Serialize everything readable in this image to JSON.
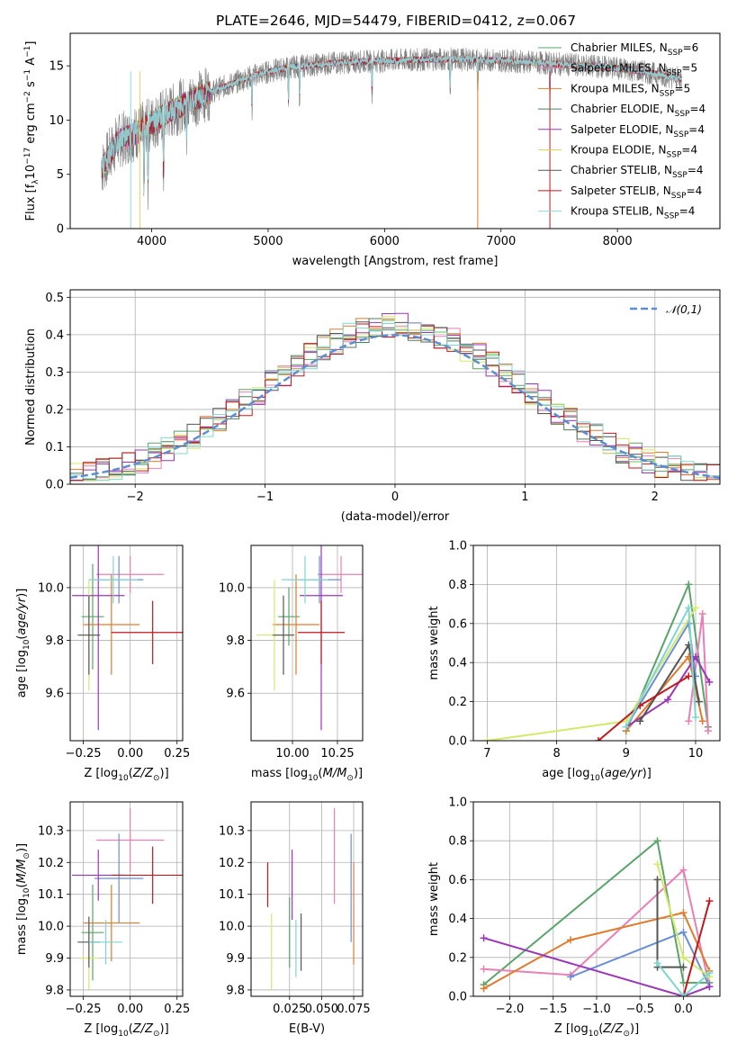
{
  "figure": {
    "title": "PLATE=2646, MJD=54479, FIBERID=0412, z=0.067"
  },
  "colors": {
    "data": "#808080",
    "models": [
      "#5aa469",
      "#e87fb5",
      "#e07b2c",
      "#4f7d5c",
      "#9b36b7",
      "#e8d35a",
      "#555555",
      "#c0191f",
      "#8fd9d9"
    ],
    "panel_models": [
      "#5aa469",
      "#e87fb5",
      "#e07b2c",
      "#6a8fd6",
      "#9b36b7",
      "#d4e86a",
      "#555555",
      "#c0191f",
      "#7fd6d0"
    ],
    "gauss": "#5b8fd4"
  },
  "chart_data": [
    {
      "id": "spectrum",
      "type": "line",
      "title": "PLATE=2646, MJD=54479, FIBERID=0412, z=0.067",
      "xlabel": "wavelength [Angstrom, rest frame]",
      "ylabel": "Flux [fλ10⁻¹⁷ erg cm⁻² s⁻¹ A⁻¹]",
      "xlim": [
        3300,
        8880
      ],
      "ylim": [
        0,
        18
      ],
      "xticks": [
        4000,
        5000,
        6000,
        7000,
        8000
      ],
      "yticks": [
        0,
        5,
        10,
        15
      ],
      "continuum": {
        "x": [
          3570,
          3700,
          3900,
          4100,
          4300,
          4600,
          4900,
          5200,
          5500,
          5800,
          6100,
          6400,
          6700,
          7000,
          7300,
          7600,
          7900,
          8200,
          8550
        ],
        "y": [
          5.5,
          8.0,
          9.0,
          10.4,
          11.6,
          13.0,
          14.2,
          14.9,
          15.2,
          15.4,
          15.5,
          15.6,
          15.6,
          15.5,
          15.3,
          15.1,
          14.9,
          14.5,
          13.8
        ]
      },
      "absorption_lines": [
        3934,
        3968,
        4102,
        4300,
        4861,
        5175,
        5270,
        5893,
        6563,
        6800,
        7420
      ],
      "legend": {
        "placement": "top-right",
        "entries": [
          "Chabrier MILES, N_SSP=6",
          "Salpeter MILES, N_SSP=5",
          "Kroupa MILES, N_SSP=5",
          "Chabrier ELODIE, N_SSP=4",
          "Salpeter ELODIE, N_SSP=4",
          "Kroupa ELODIE, N_SSP=4",
          "Chabrier STELIB, N_SSP=4",
          "Salpeter STELIB, N_SSP=4",
          "Kroupa STELIB, N_SSP=4"
        ]
      }
    },
    {
      "id": "residuals",
      "type": "histogram",
      "xlabel": "(data-model)/error",
      "ylabel": "Normed distribution",
      "xlim": [
        -2.5,
        2.5
      ],
      "ylim": [
        0,
        0.52
      ],
      "xticks": [
        -2,
        -1,
        0,
        1,
        2
      ],
      "yticks": [
        0.0,
        0.1,
        0.2,
        0.3,
        0.4,
        0.5
      ],
      "bin_width": 0.1,
      "legend": "𝒩(0,1)",
      "legend_placement": "top-right"
    },
    {
      "id": "age-vs-Z",
      "type": "errorbar",
      "xlabel": "Z [log10(Z/Z⊙)]",
      "ylabel": "age  [log10(age/yr)]",
      "xlim": [
        -0.32,
        0.28
      ],
      "ylim": [
        9.42,
        10.16
      ],
      "xticks": [
        -0.25,
        0.0,
        0.25
      ],
      "yticks": [
        9.6,
        9.8,
        10.0
      ],
      "points": [
        {
          "x": -0.2,
          "xerr": 0.06,
          "y": 9.89,
          "yerr": 0.2
        },
        {
          "x": 0.0,
          "xerr": 0.18,
          "y": 10.05,
          "yerr": 0.07
        },
        {
          "x": -0.1,
          "xerr": 0.15,
          "y": 9.86,
          "yerr": 0.19
        },
        {
          "x": -0.06,
          "xerr": 0.13,
          "y": 10.03,
          "yerr": 0.09
        },
        {
          "x": -0.17,
          "xerr": 0.14,
          "y": 9.97,
          "yerr": 0.51
        },
        {
          "x": -0.22,
          "xerr": 0.05,
          "y": 9.82,
          "yerr": 0.21
        },
        {
          "x": -0.22,
          "xerr": 0.06,
          "y": 9.82,
          "yerr": 0.15
        },
        {
          "x": 0.12,
          "xerr": 0.22,
          "y": 9.83,
          "yerr": 0.12
        },
        {
          "x": -0.09,
          "xerr": 0.13,
          "y": 10.03,
          "yerr": 0.09
        }
      ]
    },
    {
      "id": "age-vs-mass",
      "type": "errorbar",
      "xlabel": "mass [log10(M/M⊙)]",
      "ylabel": "",
      "xlim": [
        9.77,
        10.39
      ],
      "ylim": [
        9.42,
        10.16
      ],
      "xticks": [
        10.0,
        10.25
      ],
      "yticks": [
        9.6,
        9.8,
        10.0
      ],
      "points": [
        {
          "x": 9.98,
          "xerr": 0.06,
          "y": 9.89,
          "yerr": 0.11
        },
        {
          "x": 10.27,
          "xerr": 0.13,
          "y": 10.05,
          "yerr": 0.07
        },
        {
          "x": 10.02,
          "xerr": 0.13,
          "y": 9.86,
          "yerr": 0.19
        },
        {
          "x": 10.15,
          "xerr": 0.12,
          "y": 10.03,
          "yerr": 0.09
        },
        {
          "x": 10.16,
          "xerr": 0.12,
          "y": 9.97,
          "yerr": 0.51
        },
        {
          "x": 9.9,
          "xerr": 0.1,
          "y": 9.82,
          "yerr": 0.21
        },
        {
          "x": 9.95,
          "xerr": 0.06,
          "y": 9.82,
          "yerr": 0.15
        },
        {
          "x": 10.16,
          "xerr": 0.13,
          "y": 9.83,
          "yerr": 0.12
        },
        {
          "x": 10.07,
          "xerr": 0.13,
          "y": 10.03,
          "yerr": 0.09
        }
      ]
    },
    {
      "id": "weight-vs-age",
      "type": "line",
      "xlabel": "age  [log10(age/yr)]",
      "ylabel": "mass weight",
      "xlim": [
        6.8,
        10.35
      ],
      "ylim": [
        0.0,
        1.0
      ],
      "xticks": [
        7,
        8,
        9,
        10
      ],
      "yticks": [
        0.0,
        0.2,
        0.4,
        0.6,
        0.8,
        1.0
      ],
      "series": [
        {
          "x": [
            9.0,
            9.9,
            10.18
          ],
          "y": [
            0.05,
            0.8,
            0.07
          ]
        },
        {
          "x": [
            9.9,
            10.1,
            10.18
          ],
          "y": [
            0.1,
            0.65,
            0.05
          ]
        },
        {
          "x": [
            9.0,
            9.9,
            10.1
          ],
          "y": [
            0.05,
            0.43,
            0.1
          ]
        },
        {
          "x": [
            9.0,
            9.9,
            10.0
          ],
          "y": [
            0.07,
            0.6,
            0.33
          ]
        },
        {
          "x": [
            9.0,
            9.6,
            10.0,
            10.2
          ],
          "y": [
            0.07,
            0.21,
            0.43,
            0.3
          ]
        },
        {
          "x": [
            7.0,
            9.0,
            10.0
          ],
          "y": [
            0.0,
            0.1,
            0.68
          ]
        },
        {
          "x": [
            9.2,
            9.9,
            10.05
          ],
          "y": [
            0.1,
            0.49,
            0.2
          ]
        },
        {
          "x": [
            8.6,
            9.2,
            9.9
          ],
          "y": [
            0.0,
            0.18,
            0.33
          ]
        },
        {
          "x": [
            9.0,
            9.9,
            10.0
          ],
          "y": [
            0.07,
            0.68,
            0.12
          ]
        }
      ]
    },
    {
      "id": "mass-vs-Z",
      "type": "errorbar",
      "xlabel": "Z [log10(Z/Z⊙)]",
      "ylabel": "mass [log10(M/M⊙)]",
      "xlim": [
        -0.32,
        0.28
      ],
      "ylim": [
        9.78,
        10.39
      ],
      "xticks": [
        -0.25,
        0.0,
        0.25
      ],
      "yticks": [
        9.8,
        9.9,
        10.0,
        10.1,
        10.2,
        10.3
      ],
      "points": [
        {
          "x": -0.2,
          "xerr": 0.06,
          "y": 9.98,
          "yerr": 0.15
        },
        {
          "x": 0.0,
          "xerr": 0.18,
          "y": 10.27,
          "yerr": 0.1
        },
        {
          "x": -0.1,
          "xerr": 0.15,
          "y": 10.01,
          "yerr": 0.12
        },
        {
          "x": -0.06,
          "xerr": 0.13,
          "y": 10.15,
          "yerr": 0.14
        },
        {
          "x": -0.17,
          "xerr": 0.14,
          "y": 10.16,
          "yerr": 0.08
        },
        {
          "x": -0.22,
          "xerr": 0.05,
          "y": 9.9,
          "yerr": 0.1
        },
        {
          "x": -0.22,
          "xerr": 0.06,
          "y": 9.95,
          "yerr": 0.08
        },
        {
          "x": 0.12,
          "xerr": 0.22,
          "y": 10.16,
          "yerr": 0.09
        },
        {
          "x": -0.13,
          "xerr": 0.09,
          "y": 9.95,
          "yerr": 0.07
        }
      ]
    },
    {
      "id": "mass-vs-ebv",
      "type": "errorbar",
      "xlabel": "E(B-V)",
      "ylabel": "",
      "xlim": [
        -0.005,
        0.082
      ],
      "ylim": [
        9.78,
        10.39
      ],
      "xticks": [
        0.025,
        0.05,
        0.075
      ],
      "yticks": [
        9.8,
        9.9,
        10.0,
        10.1,
        10.2,
        10.3
      ],
      "points": [
        {
          "x": 0.025,
          "y": 9.98,
          "yerr": 0.11
        },
        {
          "x": 0.06,
          "y": 10.22,
          "yerr": 0.15
        },
        {
          "x": 0.075,
          "y": 10.04,
          "yerr": 0.16
        },
        {
          "x": 0.073,
          "y": 10.12,
          "yerr": 0.17
        },
        {
          "x": 0.027,
          "y": 10.13,
          "yerr": 0.11
        },
        {
          "x": 0.011,
          "y": 9.92,
          "yerr": 0.12
        },
        {
          "x": 0.034,
          "y": 9.95,
          "yerr": 0.09
        },
        {
          "x": 0.008,
          "y": 10.13,
          "yerr": 0.07
        },
        {
          "x": 0.03,
          "y": 9.93,
          "yerr": 0.09
        }
      ]
    },
    {
      "id": "weight-vs-Z",
      "type": "line",
      "xlabel": "Z [log10(Z/Z⊙)]",
      "ylabel": "mass weight",
      "xlim": [
        -2.42,
        0.42
      ],
      "ylim": [
        0.0,
        1.0
      ],
      "xticks": [
        -2.0,
        -1.5,
        -1.0,
        -0.5,
        0.0
      ],
      "yticks": [
        0.0,
        0.2,
        0.4,
        0.6,
        0.8,
        1.0
      ],
      "series": [
        {
          "x": [
            -2.3,
            -0.3,
            0.0,
            0.3
          ],
          "y": [
            0.06,
            0.8,
            0.07,
            0.07
          ]
        },
        {
          "x": [
            -2.3,
            -1.3,
            0.0,
            0.3
          ],
          "y": [
            0.14,
            0.11,
            0.65,
            0.05
          ]
        },
        {
          "x": [
            -2.3,
            -1.3,
            0.0,
            0.3
          ],
          "y": [
            0.04,
            0.29,
            0.43,
            0.13
          ]
        },
        {
          "x": [
            -1.3,
            0.0,
            0.3
          ],
          "y": [
            0.1,
            0.33,
            0.05
          ]
        },
        {
          "x": [
            -2.3,
            0.0,
            0.3
          ],
          "y": [
            0.3,
            0.0,
            0.05
          ]
        },
        {
          "x": [
            -0.3,
            0.0,
            0.3
          ],
          "y": [
            0.68,
            0.2,
            0.1
          ]
        },
        {
          "x": [
            -0.3,
            -0.3,
            0.0
          ],
          "y": [
            0.6,
            0.15,
            0.15
          ]
        },
        {
          "x": [
            0.0,
            0.3
          ],
          "y": [
            0.0,
            0.49
          ]
        },
        {
          "x": [
            -0.3,
            0.0,
            0.3
          ],
          "y": [
            0.17,
            0.0,
            0.12
          ]
        }
      ]
    }
  ]
}
